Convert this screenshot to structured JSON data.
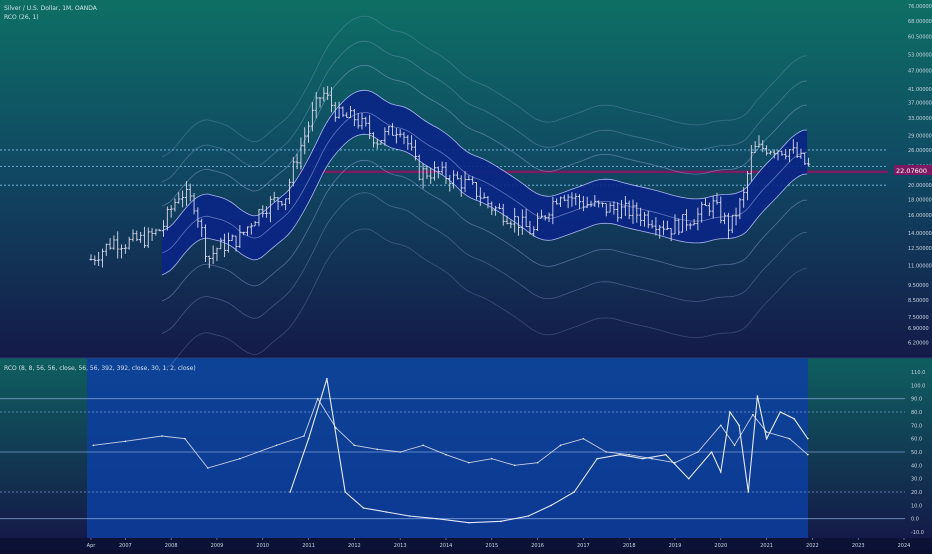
{
  "header": {
    "symbol_line": "Silver / U.S. Dollar, 1M, OANDA",
    "indicator_line": "RCO (26, 1)"
  },
  "lower_panel": {
    "indicator_label": "RCO (8, 8, 56, 56, close, 56, 56, 392, 392, close, 30, 1, 2, close)"
  },
  "current_price": "22.07600",
  "colors": {
    "bg_top": "#0e6f64",
    "bg_bottom": "#131b4a",
    "band_fill": "#0a2585",
    "price_bars": "#d8dcef",
    "bands": "#b9c4ff",
    "current_price": "#7d1a63",
    "level_line": "#7fc0ee",
    "lower_panel": "#0d3ea0"
  },
  "chart_data": [
    {
      "type": "ohlc",
      "title": "Silver / U.S. Dollar, 1M, OANDA",
      "y_scale": "log",
      "ylim": [
        5.6,
        76.0
      ],
      "y_ticks": [
        "76.00000",
        "68.00000",
        "60.50000",
        "53.00000",
        "47.00000",
        "41.00000",
        "37.00000",
        "33.00000",
        "29.00000",
        "26.00000",
        "23.00000",
        "20.00000",
        "18.00000",
        "16.00000",
        "14.00000",
        "12.50000",
        "11.00000",
        "9.50000",
        "8.50000",
        "7.50000",
        "6.90000",
        "6.20000",
        "5.60000"
      ],
      "x_ticks": [
        "Apr",
        "2007",
        "2008",
        "2009",
        "2010",
        "2011",
        "2012",
        "2013",
        "2014",
        "2015",
        "2016",
        "2017",
        "2018",
        "2019",
        "2020",
        "2021",
        "2022",
        "2023",
        "2024"
      ],
      "reference_lines": [
        26.0,
        23.0,
        20.0
      ],
      "close_series": {
        "x": [
          2006.25,
          2006.75,
          2007.0,
          2007.5,
          2007.8,
          2008.2,
          2008.5,
          2008.8,
          2009.0,
          2009.5,
          2010.0,
          2010.5,
          2010.9,
          2011.3,
          2011.7,
          2012.0,
          2012.5,
          2013.0,
          2013.4,
          2013.8,
          2014.5,
          2015.0,
          2015.5,
          2015.9,
          2016.5,
          2017.0,
          2017.5,
          2018.0,
          2018.5,
          2018.9,
          2019.5,
          2019.8,
          2020.2,
          2020.5,
          2020.7,
          2021.0,
          2021.5,
          2021.9
        ],
        "y": [
          11.5,
          13.2,
          13.0,
          13.5,
          14.5,
          19.0,
          17.5,
          11.5,
          12.5,
          13.5,
          17.0,
          18.5,
          28.5,
          40.0,
          33.0,
          33.0,
          28.0,
          31.0,
          22.0,
          22.0,
          20.0,
          17.0,
          15.5,
          14.0,
          19.0,
          17.5,
          16.8,
          16.5,
          15.5,
          14.5,
          16.0,
          17.5,
          14.5,
          18.5,
          26.0,
          26.5,
          26.0,
          23.0
        ]
      },
      "bands_note": "RCO (26, 1) envelope bands"
    },
    {
      "type": "line",
      "title": "RCO (8, 8, 56, 56, close, 56, 56, 392, 392, close, 30, 1, 2, close)",
      "ylim": [
        -10,
        110
      ],
      "y_ticks": [
        "110.0",
        "100.0",
        "90.0",
        "80.0",
        "70.0",
        "60.0",
        "50.0",
        "40.0",
        "30.0",
        "20.0",
        "10.0",
        "0.0",
        "-10.0"
      ],
      "reference_lines": [
        90,
        80,
        50,
        20,
        0
      ],
      "series": [
        {
          "x": [
            2006.3,
            2007.0,
            2007.8,
            2008.3,
            2008.8,
            2009.5,
            2010.3,
            2010.9,
            2011.2,
            2011.6,
            2012.0,
            2012.5,
            2013.0,
            2013.5,
            2014.0,
            2014.5,
            2015.0,
            2015.5,
            2016.0,
            2016.5,
            2017.0,
            2017.5,
            2018.0,
            2018.5,
            2019.0,
            2019.5,
            2020.0,
            2020.3,
            2020.7,
            2021.0,
            2021.5,
            2021.9
          ],
          "y": [
            55,
            58,
            62,
            60,
            38,
            45,
            55,
            62,
            90,
            68,
            55,
            52,
            50,
            55,
            48,
            42,
            45,
            40,
            42,
            55,
            60,
            50,
            48,
            45,
            42,
            50,
            70,
            55,
            78,
            65,
            60,
            48
          ]
        },
        {
          "x": [
            2010.6,
            2011.0,
            2011.4,
            2011.8,
            2012.2,
            2012.7,
            2013.2,
            2013.8,
            2014.5,
            2015.2,
            2015.8,
            2016.3,
            2016.8,
            2017.3,
            2017.8,
            2018.3,
            2018.8,
            2019.3,
            2019.8,
            2020.0,
            2020.2,
            2020.4,
            2020.6,
            2020.8,
            2021.0,
            2021.3,
            2021.6,
            2021.9
          ],
          "y": [
            20,
            60,
            105,
            20,
            8,
            5,
            2,
            0,
            -3,
            -2,
            2,
            10,
            20,
            45,
            48,
            45,
            48,
            30,
            50,
            35,
            80,
            70,
            20,
            92,
            60,
            80,
            75,
            60
          ]
        }
      ]
    }
  ]
}
